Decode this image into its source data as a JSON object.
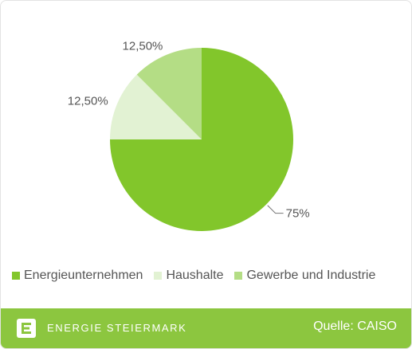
{
  "chart_data": {
    "type": "pie",
    "categories": [
      "Energieunternehmen",
      "Haushalte",
      "Gewerbe und Industrie"
    ],
    "values": [
      75,
      12.5,
      12.5
    ],
    "labels": [
      "75%",
      "12,50%",
      "12,50%"
    ],
    "colors": [
      "#82c62b",
      "#e2f2d3",
      "#b4dd85"
    ],
    "legend_position": "bottom-left"
  },
  "footer": {
    "brand": "ENERGIE STEIERMARK",
    "source": "Quelle: CAISO",
    "background_color": "#8cc63f",
    "logo_icon": "energie-steiermark-logo"
  }
}
